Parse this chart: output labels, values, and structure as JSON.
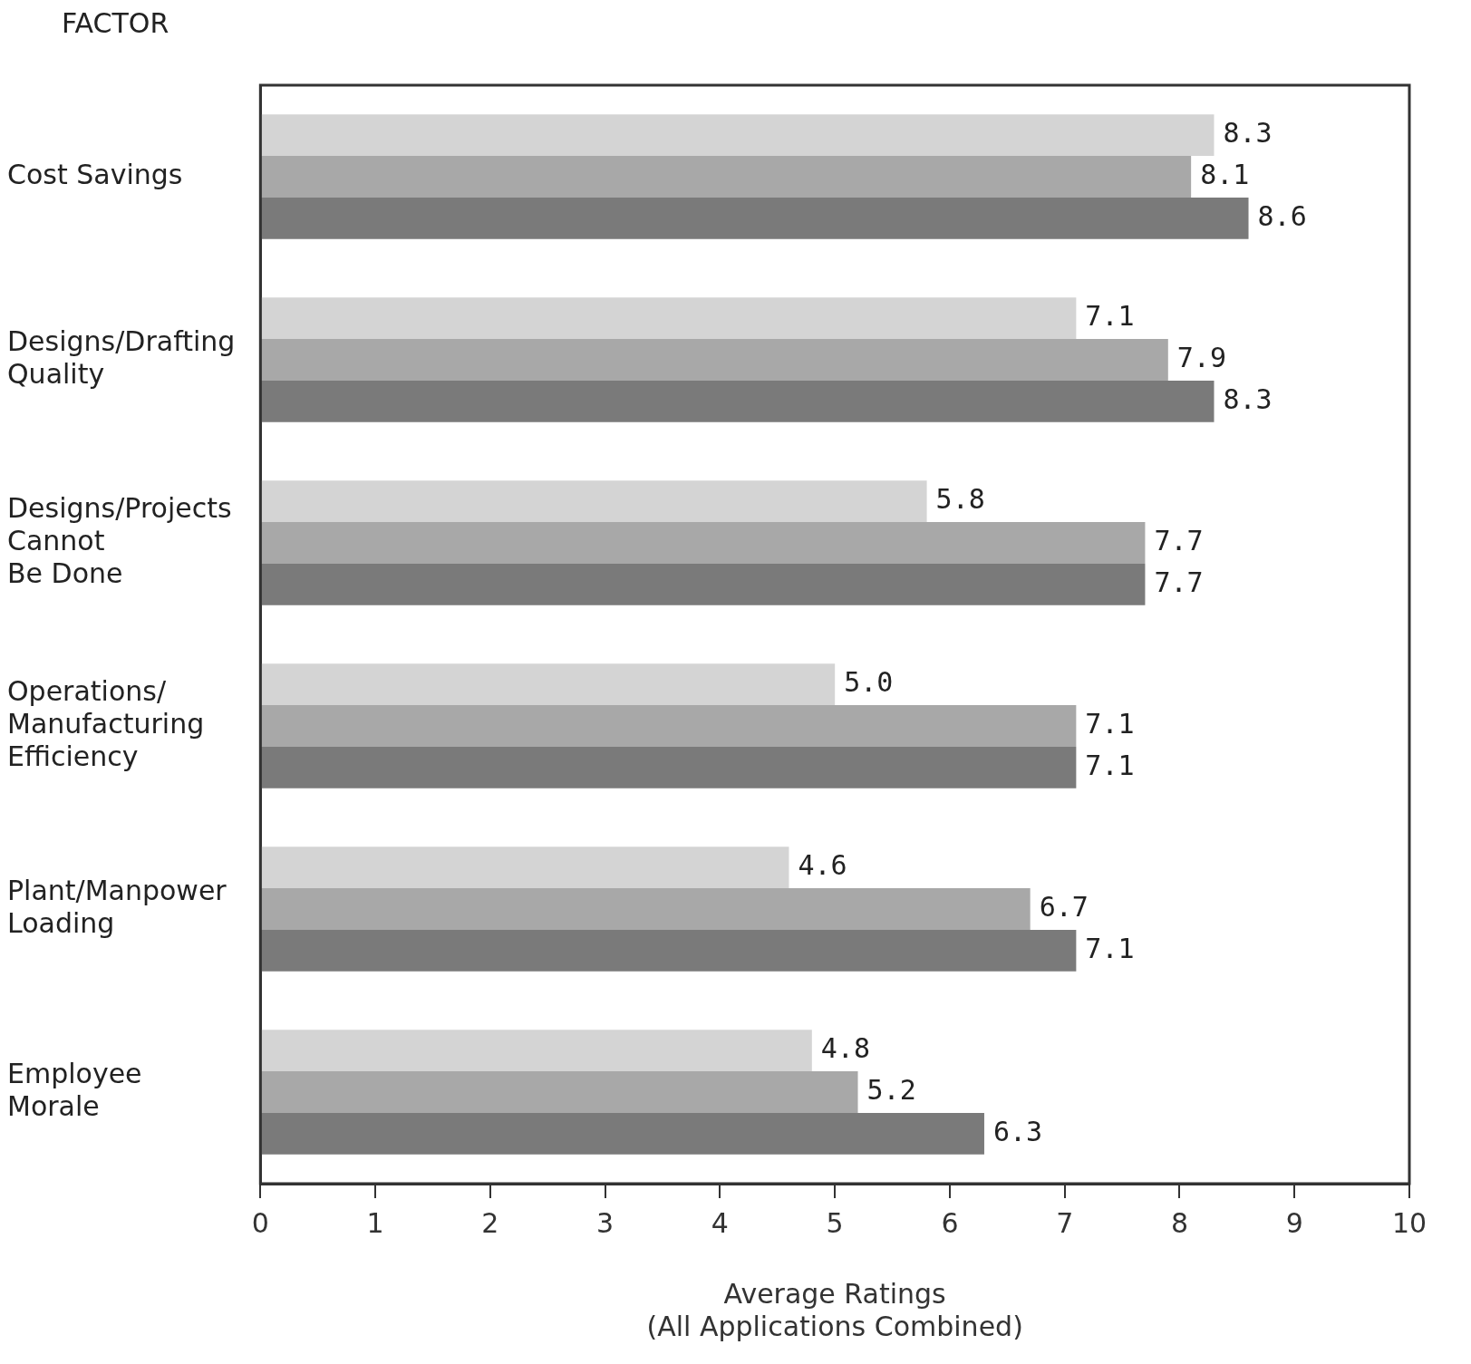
{
  "chart_data": {
    "type": "bar",
    "orientation": "horizontal",
    "ylabel": "FACTOR",
    "xlabel": "Average Ratings\n(All Applications Combined)",
    "categories": [
      "Cost Savings",
      "Designs/Drafting\nQuality",
      "Designs/Projects\nCannot\nBe Done",
      "Operations/\nManufacturing\nEfficiency",
      "Plant/Manpower\nLoading",
      "Employee\nMorale"
    ],
    "series": [
      {
        "color": "#d4d4d4",
        "values": [
          8.3,
          7.1,
          5.8,
          5.0,
          4.6,
          4.8
        ],
        "value_labels": [
          "8.3",
          "7.1",
          "5.8",
          "5.0",
          "4.6",
          "4.8"
        ]
      },
      {
        "color": "#a8a8a8",
        "values": [
          8.1,
          7.9,
          7.7,
          7.1,
          6.7,
          5.2
        ],
        "value_labels": [
          "8.1",
          "7.9",
          "7.7",
          "7.1",
          "6.7",
          "5.2"
        ]
      },
      {
        "color": "#7a7a7a",
        "values": [
          8.6,
          8.3,
          7.7,
          7.1,
          7.1,
          6.3
        ],
        "value_labels": [
          "8.6",
          "8.3",
          "7.7",
          "7.1",
          "7.1",
          "6.3"
        ]
      }
    ],
    "xlim": [
      0,
      10
    ],
    "xticks": [
      0,
      1,
      2,
      3,
      4,
      5,
      6,
      7,
      8,
      9,
      10
    ],
    "grid": false,
    "legend": false
  }
}
